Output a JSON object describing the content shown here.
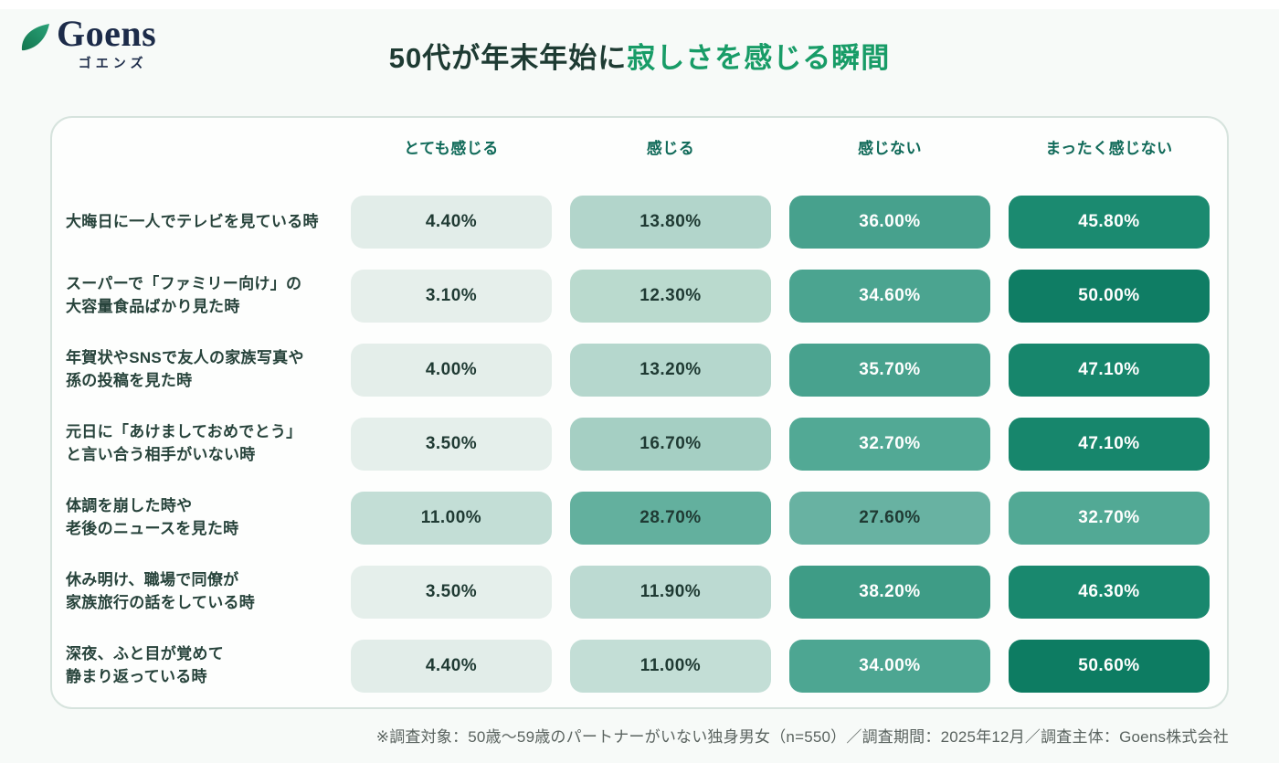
{
  "header": {
    "logo": {
      "name": "Goens",
      "subtitle": "ゴエンズ",
      "leaf_color_dark": "#14764f",
      "leaf_color_light": "#2aa278",
      "text_color": "#1c2b49"
    },
    "title": {
      "prefix": "50代が年末年始に",
      "highlight": "寂しさを感じる瞬間",
      "prefix_color": "#1e3b33",
      "highlight_color": "#189c67"
    }
  },
  "table": {
    "columns": [
      "とても感じる",
      "感じる",
      "感じない",
      "まったく感じない"
    ],
    "header_text_color": "#106a59",
    "dark_value_color": "#1f3a33",
    "light_value_color": "#ffffff",
    "rows": [
      {
        "label_lines": [
          "大晦日に一人でテレビを見ている時"
        ],
        "cells": [
          {
            "value": "4.40%",
            "bg": "#e2ede9",
            "text": "#1f3a33"
          },
          {
            "value": "13.80%",
            "bg": "#b2d5cb",
            "text": "#1f3a33"
          },
          {
            "value": "36.00%",
            "bg": "#47a18d",
            "text": "#ffffff"
          },
          {
            "value": "45.80%",
            "bg": "#1b8a70",
            "text": "#ffffff"
          }
        ]
      },
      {
        "label_lines": [
          "スーパーで「ファミリー向け」の",
          "大容量食品ばかり見た時"
        ],
        "cells": [
          {
            "value": "3.10%",
            "bg": "#e6efeb",
            "text": "#1f3a33"
          },
          {
            "value": "12.30%",
            "bg": "#badace",
            "text": "#1f3a33"
          },
          {
            "value": "34.60%",
            "bg": "#4ba490",
            "text": "#ffffff"
          },
          {
            "value": "50.00%",
            "bg": "#0f7d64",
            "text": "#ffffff"
          }
        ]
      },
      {
        "label_lines": [
          "年賀状やSNSで友人の家族写真や",
          "孫の投稿を見た時"
        ],
        "cells": [
          {
            "value": "4.00%",
            "bg": "#e4eeea",
            "text": "#1f3a33"
          },
          {
            "value": "13.20%",
            "bg": "#b5d7cd",
            "text": "#1f3a33"
          },
          {
            "value": "35.70%",
            "bg": "#48a28e",
            "text": "#ffffff"
          },
          {
            "value": "47.10%",
            "bg": "#17866c",
            "text": "#ffffff"
          }
        ]
      },
      {
        "label_lines": [
          "元日に「あけましておめでとう」",
          "と言い合う相手がいない時"
        ],
        "cells": [
          {
            "value": "3.50%",
            "bg": "#e5efeb",
            "text": "#1f3a33"
          },
          {
            "value": "16.70%",
            "bg": "#a5cfc3",
            "text": "#1f3a33"
          },
          {
            "value": "32.70%",
            "bg": "#52a995",
            "text": "#ffffff"
          },
          {
            "value": "47.10%",
            "bg": "#17866c",
            "text": "#ffffff"
          }
        ]
      },
      {
        "label_lines": [
          "体調を崩した時や",
          "老後のニュースを見た時"
        ],
        "cells": [
          {
            "value": "11.00%",
            "bg": "#c3ded6",
            "text": "#1f3a33"
          },
          {
            "value": "28.70%",
            "bg": "#63b09e",
            "text": "#1f3a33"
          },
          {
            "value": "27.60%",
            "bg": "#68b2a2",
            "text": "#1f3a33"
          },
          {
            "value": "32.70%",
            "bg": "#52a995",
            "text": "#ffffff"
          }
        ]
      },
      {
        "label_lines": [
          "休み明け、職場で同僚が",
          "家族旅行の話をしている時"
        ],
        "cells": [
          {
            "value": "3.50%",
            "bg": "#e5efeb",
            "text": "#1f3a33"
          },
          {
            "value": "11.90%",
            "bg": "#bcdad2",
            "text": "#1f3a33"
          },
          {
            "value": "38.20%",
            "bg": "#3e9c86",
            "text": "#ffffff"
          },
          {
            "value": "46.30%",
            "bg": "#19886e",
            "text": "#ffffff"
          }
        ]
      },
      {
        "label_lines": [
          "深夜、ふと目が覚めて",
          "静まり返っている時"
        ],
        "cells": [
          {
            "value": "4.40%",
            "bg": "#e2ede9",
            "text": "#1f3a33"
          },
          {
            "value": "11.00%",
            "bg": "#c3ded6",
            "text": "#1f3a33"
          },
          {
            "value": "34.00%",
            "bg": "#4da692",
            "text": "#ffffff"
          },
          {
            "value": "50.60%",
            "bg": "#0d7c62",
            "text": "#ffffff"
          }
        ]
      }
    ]
  },
  "footer": {
    "note": "※調査対象：50歳〜59歳のパートナーがいない独身男女（n=550）／調査期間：2025年12月／調査主体：Goens株式会社"
  },
  "chart_data": {
    "type": "heatmap",
    "title": "50代が年末年始に寂しさを感じる瞬間",
    "columns": [
      "とても感じる",
      "感じる",
      "感じない",
      "まったく感じない"
    ],
    "rows": [
      "大晦日に一人でテレビを見ている時",
      "スーパーで「ファミリー向け」の大容量食品ばかり見た時",
      "年賀状やSNSで友人の家族写真や孫の投稿を見た時",
      "元日に「あけましておめでとう」と言い合う相手がいない時",
      "体調を崩した時や老後のニュースを見た時",
      "休み明け、職場で同僚が家族旅行の話をしている時",
      "深夜、ふと目が覚めて静まり返っている時"
    ],
    "values": [
      [
        4.4,
        13.8,
        36.0,
        45.8
      ],
      [
        3.1,
        12.3,
        34.6,
        50.0
      ],
      [
        4.0,
        13.2,
        35.7,
        47.1
      ],
      [
        3.5,
        16.7,
        32.7,
        47.1
      ],
      [
        11.0,
        28.7,
        27.6,
        32.7
      ],
      [
        3.5,
        11.9,
        38.2,
        46.3
      ],
      [
        4.4,
        11.0,
        34.0,
        50.6
      ]
    ],
    "unit": "%",
    "color_scale": {
      "low": "#e6efeb",
      "high": "#0d7c62"
    },
    "legend_position": "none",
    "grid": false
  }
}
